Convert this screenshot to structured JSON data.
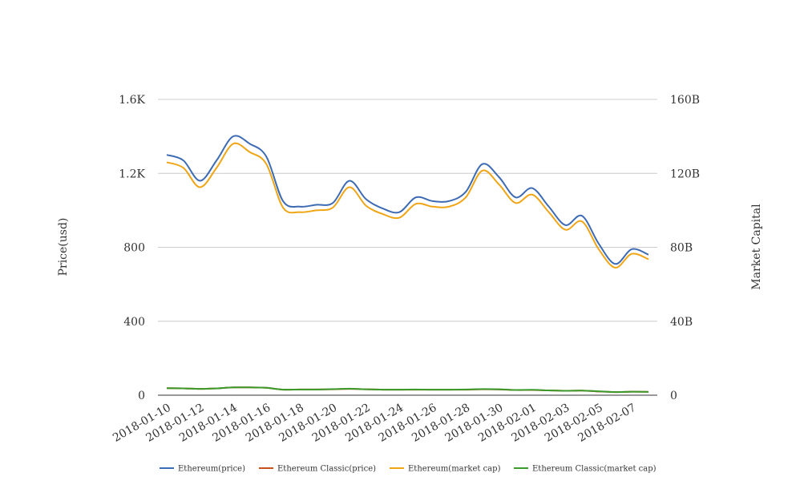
{
  "chart_data": {
    "type": "line",
    "x": [
      "2018-01-10",
      "2018-01-11",
      "2018-01-12",
      "2018-01-13",
      "2018-01-14",
      "2018-01-15",
      "2018-01-16",
      "2018-01-17",
      "2018-01-18",
      "2018-01-19",
      "2018-01-20",
      "2018-01-21",
      "2018-01-22",
      "2018-01-23",
      "2018-01-24",
      "2018-01-25",
      "2018-01-26",
      "2018-01-27",
      "2018-01-28",
      "2018-01-29",
      "2018-01-30",
      "2018-01-31",
      "2018-02-01",
      "2018-02-02",
      "2018-02-03",
      "2018-02-04",
      "2018-02-05",
      "2018-02-06",
      "2018-02-07",
      "2018-02-08"
    ],
    "x_tick_labels": [
      "2018-01-10",
      "2018-01-12",
      "2018-01-14",
      "2018-01-16",
      "2018-01-18",
      "2018-01-20",
      "2018-01-22",
      "2018-01-24",
      "2018-01-26",
      "2018-01-28",
      "2018-01-30",
      "2018-02-01",
      "2018-02-03",
      "2018-02-05",
      "2018-02-07"
    ],
    "y_left": {
      "label": "Price(usd)",
      "ticks": [
        "0",
        "400",
        "800",
        "1.2K",
        "1.6K"
      ],
      "lim": [
        0,
        1600
      ]
    },
    "y_right": {
      "label": "Market Capital",
      "ticks": [
        "0",
        "40B",
        "80B",
        "120B",
        "160B"
      ],
      "lim": [
        0,
        160000000000
      ]
    },
    "series": [
      {
        "name": "Ethereum(price)",
        "axis": "left",
        "color": "#3d6bb3",
        "values": [
          1300,
          1270,
          1160,
          1270,
          1400,
          1360,
          1290,
          1050,
          1020,
          1030,
          1040,
          1160,
          1060,
          1010,
          990,
          1070,
          1050,
          1050,
          1100,
          1250,
          1180,
          1070,
          1120,
          1020,
          920,
          970,
          820,
          710,
          790,
          760
        ]
      },
      {
        "name": "Ethereum Classic(price)",
        "axis": "left",
        "color": "#c4501e",
        "values": [
          38,
          37,
          34,
          37,
          42,
          42,
          40,
          30,
          31,
          31,
          32,
          34,
          32,
          30,
          30,
          30,
          30,
          30,
          30,
          32,
          31,
          28,
          28,
          26,
          24,
          25,
          20,
          17,
          19,
          18
        ]
      },
      {
        "name": "Ethereum(market cap)",
        "axis": "right",
        "color": "#f0a515",
        "values": [
          126000000000,
          123000000000,
          112500000000,
          123000000000,
          136000000000,
          131500000000,
          125000000000,
          101500000000,
          99000000000,
          100000000000,
          101500000000,
          112500000000,
          102500000000,
          98000000000,
          96000000000,
          103500000000,
          102000000000,
          102000000000,
          107000000000,
          121500000000,
          114000000000,
          104000000000,
          108500000000,
          99000000000,
          89500000000,
          94000000000,
          79000000000,
          69000000000,
          76500000000,
          73500000000
        ]
      },
      {
        "name": "Ethereum Classic(market cap)",
        "axis": "right",
        "color": "#3a9a2a",
        "values": [
          3800000000,
          3700000000,
          3400000000,
          3700000000,
          4200000000,
          4200000000,
          4000000000,
          3000000000,
          3100000000,
          3100000000,
          3300000000,
          3500000000,
          3200000000,
          3000000000,
          3000000000,
          3100000000,
          3000000000,
          3000000000,
          3100000000,
          3300000000,
          3200000000,
          2800000000,
          2900000000,
          2600000000,
          2400000000,
          2500000000,
          2100000000,
          1700000000,
          1900000000,
          1800000000
        ]
      }
    ],
    "grid": true,
    "legend_position": "bottom"
  }
}
